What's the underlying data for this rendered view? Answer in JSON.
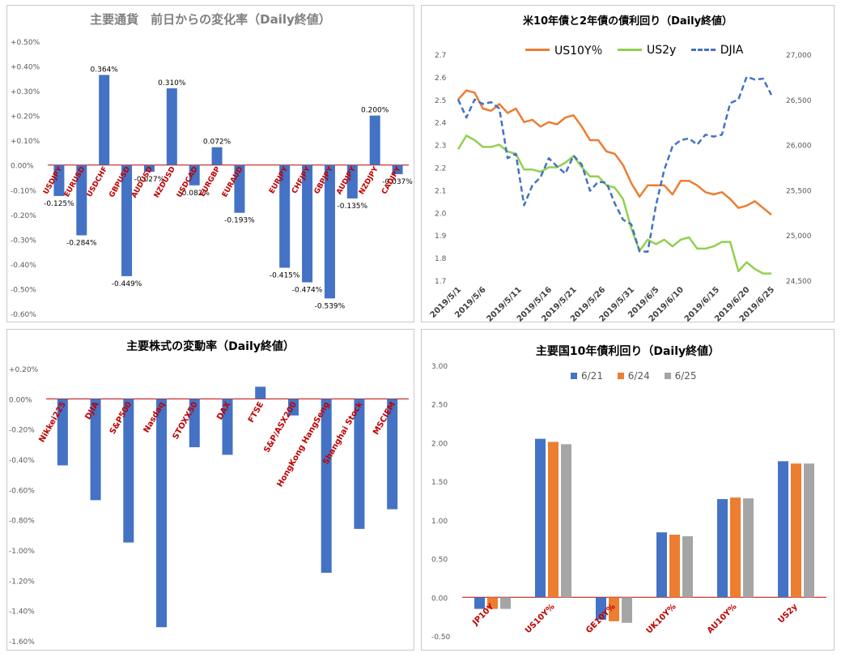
{
  "colors": {
    "blue": "#4472c4",
    "orange": "#ed7d31",
    "green": "#92d050",
    "gray": "#a5a5a5",
    "baseline": "#c00000",
    "label_red": "#c00000"
  },
  "chart_data": [
    {
      "id": "currencies",
      "type": "bar",
      "title": "主要通貨　前日からの変化率（Daily終値）",
      "ylim": [
        -0.6,
        0.5
      ],
      "yticks": [
        "+0.50%",
        "+0.40%",
        "+0.30%",
        "+0.20%",
        "+0.10%",
        "0.00%",
        "-0.10%",
        "-0.20%",
        "-0.30%",
        "-0.40%",
        "-0.50%",
        "-0.60%"
      ],
      "categories": [
        "USDJPY",
        "EURUSD",
        "USDCHF",
        "GBPUSD",
        "AUDUSD",
        "NZDUSD",
        "USDCAD",
        "EURGBP",
        "EURAUD",
        "",
        "EURJPY",
        "CHFJPY",
        "GBPJPY",
        "AUDJPY",
        "NZDJPY",
        "CADJPY"
      ],
      "values": [
        -0.125,
        -0.284,
        0.364,
        -0.449,
        -0.027,
        0.31,
        -0.082,
        0.072,
        -0.193,
        null,
        -0.415,
        -0.474,
        -0.539,
        -0.135,
        0.2,
        -0.037
      ],
      "data_labels": [
        "-0.125%",
        "-0.284%",
        "0.364%",
        "-0.449%",
        "-0.027%",
        "0.310%",
        "-0.082%",
        "0.072%",
        "-0.193%",
        "",
        "-0.415%",
        "-0.474%",
        "-0.539%",
        "-0.135%",
        "0.200%",
        "-0.037%"
      ]
    },
    {
      "id": "treasuries",
      "type": "line",
      "title": "米10年債と2年債の債利回り（Daily終値）",
      "legend": [
        "US10Y％",
        "US2y",
        "DJIA"
      ],
      "ylim_left": [
        1.7,
        2.7
      ],
      "yticks_left": [
        "2.7",
        "2.6",
        "2.5",
        "2.4",
        "2.3",
        "2.2",
        "2.1",
        "2.0",
        "1.9",
        "1.8",
        "1.7"
      ],
      "ylim_right": [
        24500,
        27000
      ],
      "yticks_right": [
        "27,000",
        "26,500",
        "26,000",
        "25,500",
        "25,000",
        "24,500"
      ],
      "xtick_labels": [
        "2019/5/1",
        "2019/5/6",
        "2019/5/11",
        "2019/5/16",
        "2019/5/21",
        "2019/5/26",
        "2019/5/31",
        "2019/6/5",
        "2019/6/10",
        "2019/6/15",
        "2019/6/20",
        "2019/6/25"
      ],
      "x": [
        "2019/5/1",
        "2019/5/2",
        "2019/5/3",
        "2019/5/6",
        "2019/5/7",
        "2019/5/8",
        "2019/5/9",
        "2019/5/10",
        "2019/5/13",
        "2019/5/14",
        "2019/5/15",
        "2019/5/16",
        "2019/5/17",
        "2019/5/20",
        "2019/5/21",
        "2019/5/22",
        "2019/5/23",
        "2019/5/24",
        "2019/5/28",
        "2019/5/29",
        "2019/5/30",
        "2019/5/31",
        "2019/6/3",
        "2019/6/4",
        "2019/6/5",
        "2019/6/6",
        "2019/6/7",
        "2019/6/10",
        "2019/6/11",
        "2019/6/12",
        "2019/6/13",
        "2019/6/14",
        "2019/6/17",
        "2019/6/18",
        "2019/6/19",
        "2019/6/20",
        "2019/6/21",
        "2019/6/24",
        "2019/6/25"
      ],
      "series": [
        {
          "name": "US10Y％",
          "color_key": "orange",
          "axis": "left",
          "values": [
            2.5,
            2.54,
            2.53,
            2.46,
            2.45,
            2.48,
            2.44,
            2.46,
            2.4,
            2.41,
            2.38,
            2.4,
            2.39,
            2.42,
            2.43,
            2.38,
            2.32,
            2.32,
            2.27,
            2.26,
            2.21,
            2.13,
            2.07,
            2.12,
            2.12,
            2.12,
            2.08,
            2.14,
            2.14,
            2.12,
            2.09,
            2.08,
            2.09,
            2.06,
            2.02,
            2.03,
            2.05,
            2.02,
            1.99
          ]
        },
        {
          "name": "US2y",
          "color_key": "green",
          "axis": "left",
          "values": [
            2.28,
            2.34,
            2.32,
            2.29,
            2.29,
            2.3,
            2.27,
            2.26,
            2.19,
            2.19,
            2.18,
            2.2,
            2.2,
            2.22,
            2.25,
            2.2,
            2.16,
            2.16,
            2.12,
            2.11,
            2.06,
            1.93,
            1.83,
            1.88,
            1.86,
            1.88,
            1.85,
            1.88,
            1.89,
            1.84,
            1.84,
            1.85,
            1.87,
            1.87,
            1.74,
            1.78,
            1.75,
            1.73,
            1.73
          ]
        },
        {
          "name": "DJIA",
          "color_key": "blue",
          "axis": "right",
          "values": [
            26500,
            26300,
            26500,
            26450,
            26470,
            26400,
            25850,
            25900,
            25330,
            25550,
            25640,
            25850,
            25760,
            25680,
            25880,
            25780,
            25490,
            25590,
            25580,
            25350,
            25170,
            25120,
            24820,
            24815,
            25330,
            25720,
            25980,
            26050,
            26070,
            26000,
            26110,
            26090,
            26110,
            26460,
            26500,
            26750,
            26720,
            26730,
            26550
          ]
        }
      ]
    },
    {
      "id": "equities",
      "type": "bar",
      "title": "主要株式の変動率（Daily終値）",
      "ylim": [
        -1.6,
        0.2
      ],
      "yticks": [
        "+0.20%",
        "0.00%",
        "-0.20%",
        "-0.40%",
        "-0.60%",
        "-0.80%",
        "-1.00%",
        "-1.20%",
        "-1.40%",
        "-1.60%"
      ],
      "categories": [
        "Nikkei225",
        "DJIA",
        "S&P500",
        "Nasdaq",
        "STOXX50",
        "DAX",
        "FTSE",
        "S&P/ASX200",
        "HongKong HangSeng",
        "Shanghai Stock",
        "MSCIEM"
      ],
      "values": [
        -0.44,
        -0.67,
        -0.95,
        -1.51,
        -0.32,
        -0.37,
        0.08,
        -0.11,
        -1.15,
        -0.86,
        -0.73
      ]
    },
    {
      "id": "bond_yields",
      "type": "bar",
      "title": "主要国10年債利回り（Daily終値）",
      "legend": [
        "6/21",
        "6/24",
        "6/25"
      ],
      "ylim": [
        -0.5,
        3.0
      ],
      "yticks": [
        "3.00",
        "2.50",
        "2.00",
        "1.50",
        "1.00",
        "0.50",
        "0.00",
        "-0.50"
      ],
      "categories": [
        "JP10Y",
        "US10Y%",
        "GE10Y%",
        "UK10Y%",
        "AU10Y%",
        "US2y"
      ],
      "series": [
        {
          "name": "6/21",
          "color_key": "blue",
          "values": [
            -0.15,
            2.05,
            -0.29,
            0.84,
            1.27,
            1.76
          ]
        },
        {
          "name": "6/24",
          "color_key": "orange",
          "values": [
            -0.15,
            2.01,
            -0.31,
            0.81,
            1.29,
            1.73
          ]
        },
        {
          "name": "6/25",
          "color_key": "gray",
          "values": [
            -0.15,
            1.98,
            -0.33,
            0.79,
            1.28,
            1.73
          ]
        }
      ]
    }
  ]
}
